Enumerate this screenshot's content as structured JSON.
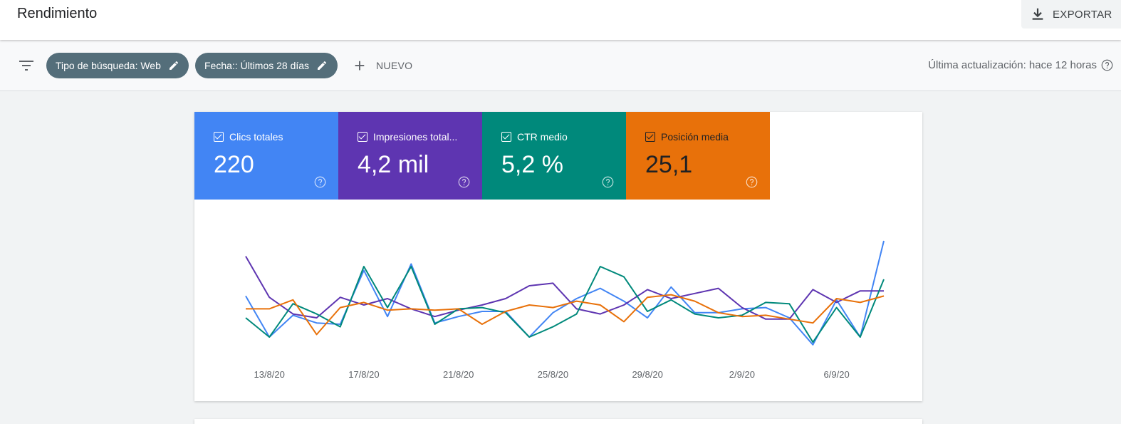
{
  "header": {
    "title": "Rendimiento",
    "export_label": "EXPORTAR"
  },
  "filters": {
    "chips": [
      {
        "label": "Tipo de búsqueda: Web"
      },
      {
        "label": "Fecha:: Últimos 28 días"
      }
    ],
    "new_label": "NUEVO",
    "last_update": "Última actualización: hace 12 horas"
  },
  "metrics": [
    {
      "label": "Clics totales",
      "value": "220",
      "checked": true,
      "color": "#4285f4"
    },
    {
      "label": "Impresiones total...",
      "value": "4,2 mil",
      "checked": true,
      "color": "#5e35b1"
    },
    {
      "label": "CTR medio",
      "value": "5,2 %",
      "checked": true,
      "color": "#00897b"
    },
    {
      "label": "Posición media",
      "value": "25,1",
      "checked": true,
      "color": "#e8710a"
    }
  ],
  "chart_data": {
    "type": "line",
    "x": [
      "12/8/20",
      "13/8/20",
      "14/8/20",
      "15/8/20",
      "16/8/20",
      "17/8/20",
      "18/8/20",
      "19/8/20",
      "20/8/20",
      "21/8/20",
      "22/8/20",
      "23/8/20",
      "24/8/20",
      "25/8/20",
      "26/8/20",
      "27/8/20",
      "28/8/20",
      "29/8/20",
      "30/8/20",
      "31/8/20",
      "1/9/20",
      "2/9/20",
      "3/9/20",
      "4/9/20",
      "5/9/20",
      "6/9/20",
      "7/9/20",
      "8/9/20"
    ],
    "x_tick_labels": [
      "13/8/20",
      "17/8/20",
      "21/8/20",
      "25/8/20",
      "29/8/20",
      "2/9/20",
      "6/9/20"
    ],
    "series": [
      {
        "key": "clicks",
        "color": "#4285f4",
        "values": [
          47,
          15,
          32,
          26,
          25,
          67,
          31,
          72,
          26,
          31,
          35,
          35,
          15,
          34,
          45,
          53,
          43,
          30,
          54,
          34,
          34,
          37,
          38,
          30,
          9,
          44,
          15,
          90
        ]
      },
      {
        "key": "impressions",
        "color": "#5e35b1",
        "values": [
          78,
          46,
          33,
          30,
          46,
          40,
          45,
          37,
          31,
          36,
          40,
          45,
          55,
          57,
          37,
          33,
          40,
          52,
          45,
          49,
          53,
          38,
          29,
          29,
          52,
          42,
          51,
          51
        ]
      },
      {
        "key": "ctr",
        "color": "#00897b",
        "values": [
          30,
          15,
          41,
          33,
          23,
          70,
          38,
          70,
          25,
          37,
          38,
          34,
          15,
          23,
          33,
          70,
          62,
          35,
          44,
          33,
          30,
          32,
          42,
          41,
          11,
          38,
          15,
          60
        ]
      },
      {
        "key": "position",
        "color": "#e8710a",
        "values": [
          37,
          37,
          44,
          17,
          38,
          42,
          36,
          37,
          36,
          37,
          25,
          35,
          40,
          38,
          43,
          40,
          27,
          46,
          48,
          43,
          34,
          31,
          32,
          29,
          26,
          45,
          42,
          47
        ]
      }
    ],
    "ylim": [
      0,
      100
    ],
    "grid": false,
    "legend": "none"
  }
}
